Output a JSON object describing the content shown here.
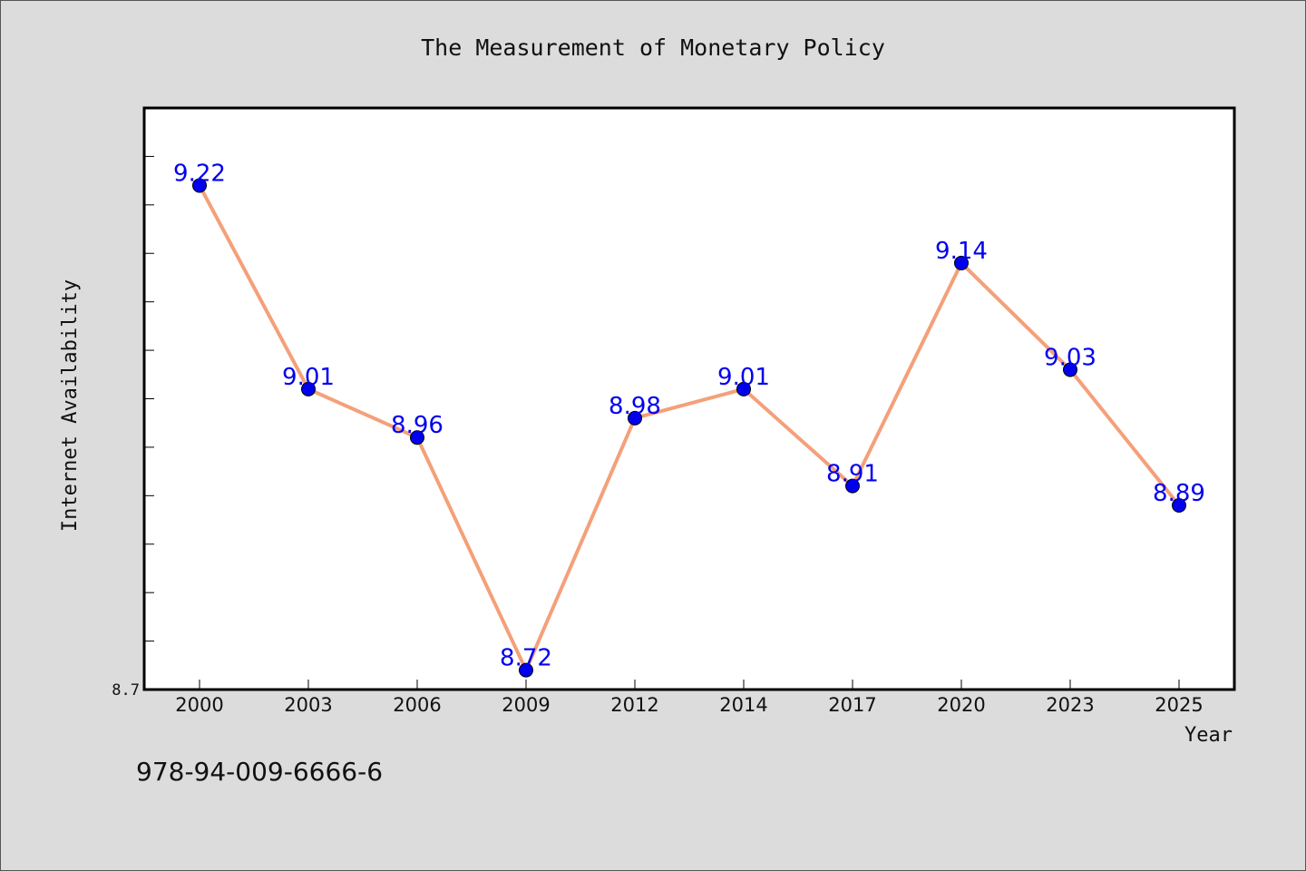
{
  "chart_data": {
    "type": "line",
    "title": "The Measurement of Monetary Policy",
    "xlabel": "Year",
    "ylabel": "Internet Availability",
    "categories": [
      "2000",
      "2003",
      "2006",
      "2009",
      "2012",
      "2014",
      "2017",
      "2020",
      "2023",
      "2025"
    ],
    "series": [
      {
        "values": [
          9.22,
          9.01,
          8.96,
          8.72,
          8.98,
          9.01,
          8.91,
          9.14,
          9.03,
          8.89
        ],
        "labels": [
          "9.22",
          "9.01",
          "8.96",
          "8.72",
          "8.98",
          "9.01",
          "8.91",
          "9.14",
          "9.03",
          "8.89"
        ],
        "line_color": "#f4a07a",
        "marker_color": "#0000ee",
        "label_color": "#0000ee"
      }
    ],
    "ylim": [
      8.7,
      9.3
    ],
    "yticks_labeled": [
      "8.7"
    ],
    "ytick_step": 0.05,
    "grid": false,
    "legend": "none"
  },
  "footer": {
    "isbn": "978-94-009-6666-6"
  }
}
